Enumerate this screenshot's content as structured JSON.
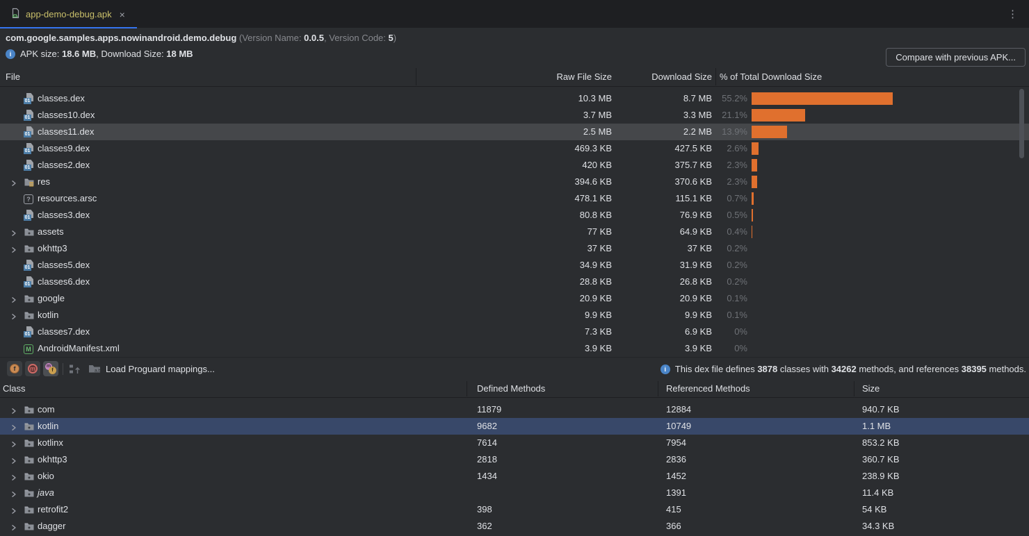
{
  "tab": {
    "title": "app-demo-debug.apk",
    "close_glyph": "×"
  },
  "window_menu": {
    "kebab_glyph": "⋮"
  },
  "header": {
    "package": "com.google.samples.apps.nowinandroid.demo.debug",
    "version_prefix": " (Version Name: ",
    "version_name": "0.0.5",
    "version_mid": ", Version Code: ",
    "version_code": "5",
    "version_suffix": ")",
    "apk_label": "APK size: ",
    "apk_size": "18.6 MB",
    "download_label": ", Download Size: ",
    "download_size": "18 MB",
    "compare_button": "Compare with previous APK..."
  },
  "colors": {
    "accent_blue": "#3574f0",
    "bar_orange": "#e0702e",
    "selection_gray": "#45474a",
    "selection_blue": "#384869",
    "tab_title_yellow": "#c9bf6a"
  },
  "file_table": {
    "columns": [
      "File",
      "Raw File Size",
      "Download Size",
      "% of Total Download Size"
    ],
    "rows": [
      {
        "name": "classes.dex",
        "icon": "dex",
        "expandable": false,
        "raw": "10.3 MB",
        "download": "8.7 MB",
        "pct_label": "55.2%",
        "pct": 55.2,
        "selected": false
      },
      {
        "name": "classes10.dex",
        "icon": "dex",
        "expandable": false,
        "raw": "3.7 MB",
        "download": "3.3 MB",
        "pct_label": "21.1%",
        "pct": 21.1,
        "selected": false
      },
      {
        "name": "classes11.dex",
        "icon": "dex",
        "expandable": false,
        "raw": "2.5 MB",
        "download": "2.2 MB",
        "pct_label": "13.9%",
        "pct": 13.9,
        "selected": true
      },
      {
        "name": "classes9.dex",
        "icon": "dex",
        "expandable": false,
        "raw": "469.3 KB",
        "download": "427.5 KB",
        "pct_label": "2.6%",
        "pct": 2.6,
        "selected": false
      },
      {
        "name": "classes2.dex",
        "icon": "dex",
        "expandable": false,
        "raw": "420 KB",
        "download": "375.7 KB",
        "pct_label": "2.3%",
        "pct": 2.3,
        "selected": false
      },
      {
        "name": "res",
        "icon": "folder-res",
        "expandable": true,
        "raw": "394.6 KB",
        "download": "370.6 KB",
        "pct_label": "2.3%",
        "pct": 2.3,
        "selected": false
      },
      {
        "name": "resources.arsc",
        "icon": "arsc",
        "expandable": false,
        "raw": "478.1 KB",
        "download": "115.1 KB",
        "pct_label": "0.7%",
        "pct": 0.7,
        "selected": false
      },
      {
        "name": "classes3.dex",
        "icon": "dex",
        "expandable": false,
        "raw": "80.8 KB",
        "download": "76.9 KB",
        "pct_label": "0.5%",
        "pct": 0.5,
        "selected": false
      },
      {
        "name": "assets",
        "icon": "folder",
        "expandable": true,
        "raw": "77 KB",
        "download": "64.9 KB",
        "pct_label": "0.4%",
        "pct": 0.4,
        "selected": false
      },
      {
        "name": "okhttp3",
        "icon": "folder",
        "expandable": true,
        "raw": "37 KB",
        "download": "37 KB",
        "pct_label": "0.2%",
        "pct": 0.2,
        "selected": false
      },
      {
        "name": "classes5.dex",
        "icon": "dex",
        "expandable": false,
        "raw": "34.9 KB",
        "download": "31.9 KB",
        "pct_label": "0.2%",
        "pct": 0.2,
        "selected": false
      },
      {
        "name": "classes6.dex",
        "icon": "dex",
        "expandable": false,
        "raw": "28.8 KB",
        "download": "26.8 KB",
        "pct_label": "0.2%",
        "pct": 0.2,
        "selected": false
      },
      {
        "name": "google",
        "icon": "folder",
        "expandable": true,
        "raw": "20.9 KB",
        "download": "20.9 KB",
        "pct_label": "0.1%",
        "pct": 0.1,
        "selected": false
      },
      {
        "name": "kotlin",
        "icon": "folder",
        "expandable": true,
        "raw": "9.9 KB",
        "download": "9.9 KB",
        "pct_label": "0.1%",
        "pct": 0.1,
        "selected": false
      },
      {
        "name": "classes7.dex",
        "icon": "dex",
        "expandable": false,
        "raw": "7.3 KB",
        "download": "6.9 KB",
        "pct_label": "0%",
        "pct": 0,
        "selected": false
      },
      {
        "name": "AndroidManifest.xml",
        "icon": "manifest",
        "expandable": false,
        "raw": "3.9 KB",
        "download": "3.9 KB",
        "pct_label": "0%",
        "pct": 0,
        "selected": false
      }
    ]
  },
  "toolbar": {
    "show_fields_glyph": "f",
    "show_methods_glyph": "m",
    "show_referenced_glyphs": {
      "m": "m",
      "f": "f"
    },
    "folder_ab_label": "a.b",
    "load_mappings_label": "Load Proguard mappings...",
    "dex_info": {
      "p1": "This dex file defines ",
      "classes": "3878",
      "p2": " classes with ",
      "methods": "34262",
      "p3": " methods, and references ",
      "references": "38395",
      "p4": " methods."
    }
  },
  "class_table": {
    "columns": [
      "Class",
      "Defined Methods",
      "Referenced Methods",
      "Size"
    ],
    "rows": [
      {
        "name": "com",
        "expandable": true,
        "defined": "11879",
        "referenced": "12884",
        "size": "940.7 KB",
        "selected": false,
        "italic": false
      },
      {
        "name": "kotlin",
        "expandable": true,
        "defined": "9682",
        "referenced": "10749",
        "size": "1.1 MB",
        "selected": true,
        "italic": false
      },
      {
        "name": "kotlinx",
        "expandable": true,
        "defined": "7614",
        "referenced": "7954",
        "size": "853.2 KB",
        "selected": false,
        "italic": false
      },
      {
        "name": "okhttp3",
        "expandable": true,
        "defined": "2818",
        "referenced": "2836",
        "size": "360.7 KB",
        "selected": false,
        "italic": false
      },
      {
        "name": "okio",
        "expandable": true,
        "defined": "1434",
        "referenced": "1452",
        "size": "238.9 KB",
        "selected": false,
        "italic": false
      },
      {
        "name": "java",
        "expandable": true,
        "defined": "",
        "referenced": "1391",
        "size": "11.4 KB",
        "selected": false,
        "italic": true
      },
      {
        "name": "retrofit2",
        "expandable": true,
        "defined": "398",
        "referenced": "415",
        "size": "54 KB",
        "selected": false,
        "italic": false
      },
      {
        "name": "dagger",
        "expandable": true,
        "defined": "362",
        "referenced": "366",
        "size": "34.3 KB",
        "selected": false,
        "italic": false
      }
    ]
  }
}
